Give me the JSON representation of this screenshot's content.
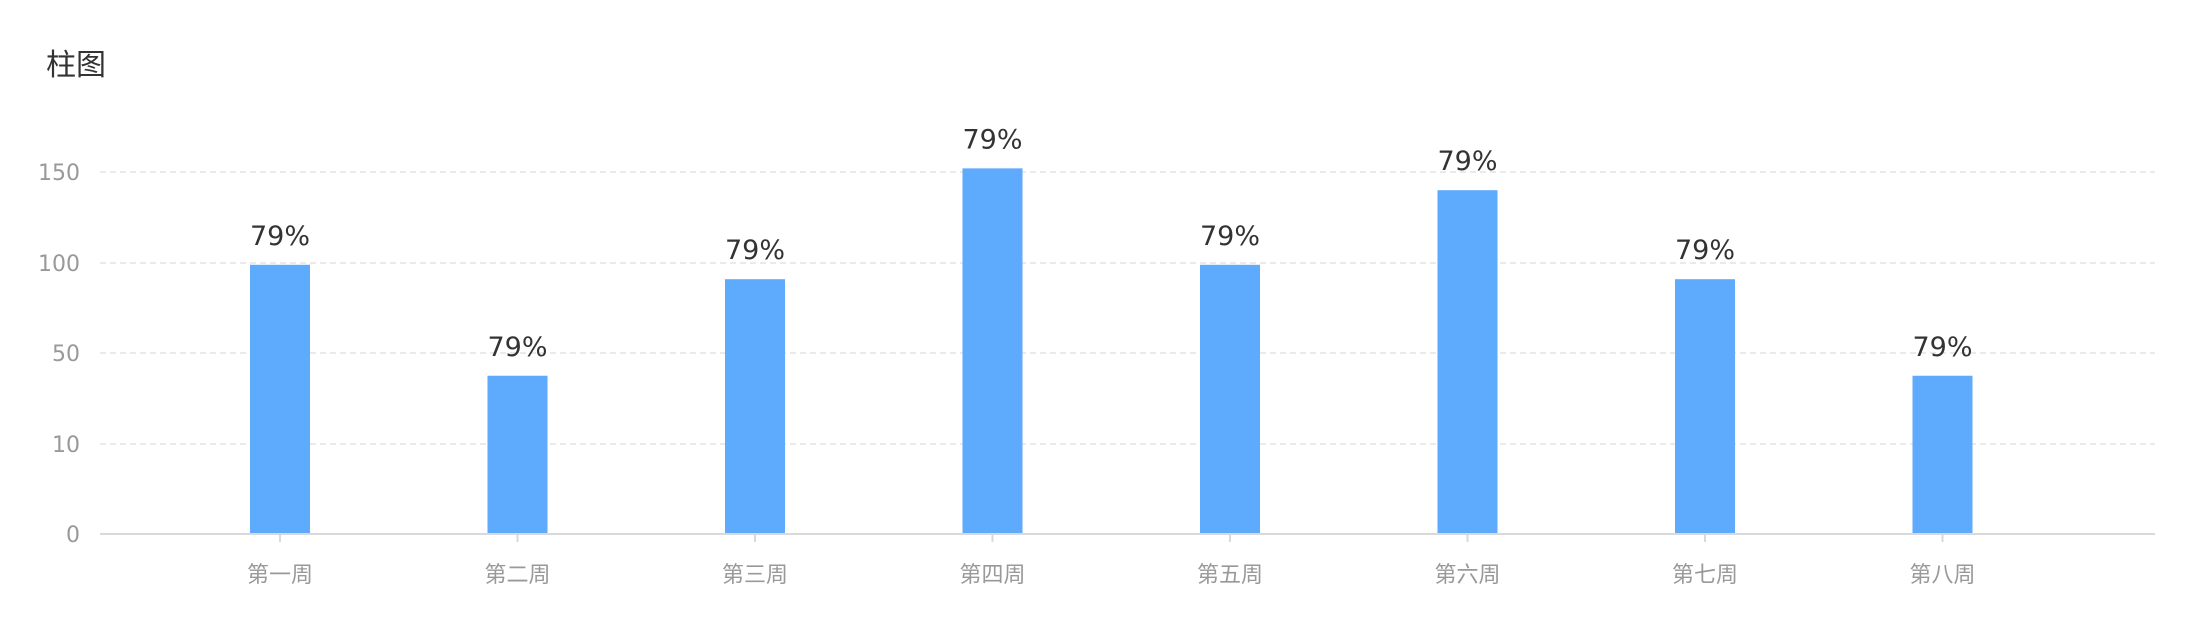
{
  "chart_data": {
    "type": "bar",
    "title": "柱图",
    "categories": [
      "第一周",
      "第二周",
      "第三周",
      "第四周",
      "第五周",
      "第六周",
      "第七周",
      "第八周"
    ],
    "values": [
      99,
      40,
      91,
      152,
      99,
      140,
      91,
      40
    ],
    "data_labels": [
      "79%",
      "79%",
      "79%",
      "79%",
      "79%",
      "79%",
      "79%",
      "79%"
    ],
    "y_ticks": [
      "0",
      "10",
      "50",
      "100",
      "150"
    ],
    "y_tick_values": [
      0,
      10,
      50,
      100,
      150
    ],
    "grid": true,
    "colors": {
      "bar": "#5eaafd",
      "grid": "#e3e3e3",
      "axis_text": "#999999",
      "label_text": "#333333"
    }
  }
}
